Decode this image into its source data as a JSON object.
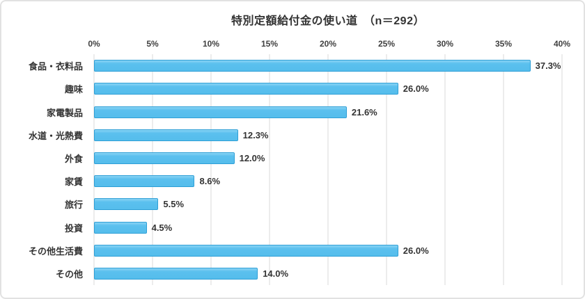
{
  "chart_data": {
    "type": "bar",
    "orientation": "horizontal",
    "title": "特別定額給付金の使い道　（n＝292）",
    "sample_label": "n＝292",
    "categories": [
      "食品・衣料品",
      "趣味",
      "家電製品",
      "水道・光熱費",
      "外食",
      "家賃",
      "旅行",
      "投資",
      "その他生活費",
      "その他"
    ],
    "values": [
      37.3,
      26.0,
      21.6,
      12.3,
      12.0,
      8.6,
      5.5,
      4.5,
      26.0,
      14.0
    ],
    "value_labels": [
      "37.3%",
      "26.0%",
      "21.6%",
      "12.3%",
      "12.0%",
      "8.6%",
      "5.5%",
      "4.5%",
      "26.0%",
      "14.0%"
    ],
    "xlim": [
      0,
      40
    ],
    "x_tick_values": [
      0,
      5,
      10,
      15,
      20,
      25,
      30,
      35,
      40
    ],
    "x_tick_labels": [
      "0%",
      "5%",
      "10%",
      "15%",
      "20%",
      "25%",
      "30%",
      "35%",
      "40%"
    ],
    "grid": true,
    "axis_position": "top",
    "legend": "none",
    "colors": {
      "bar_fill": "#55bdec",
      "bar_fill_highlight": "#8ad4f5",
      "bar_border": "#2e9fd6",
      "gridline": "#d9d9d9",
      "frame_border": "#e2e2e2",
      "text": "#333333"
    }
  }
}
